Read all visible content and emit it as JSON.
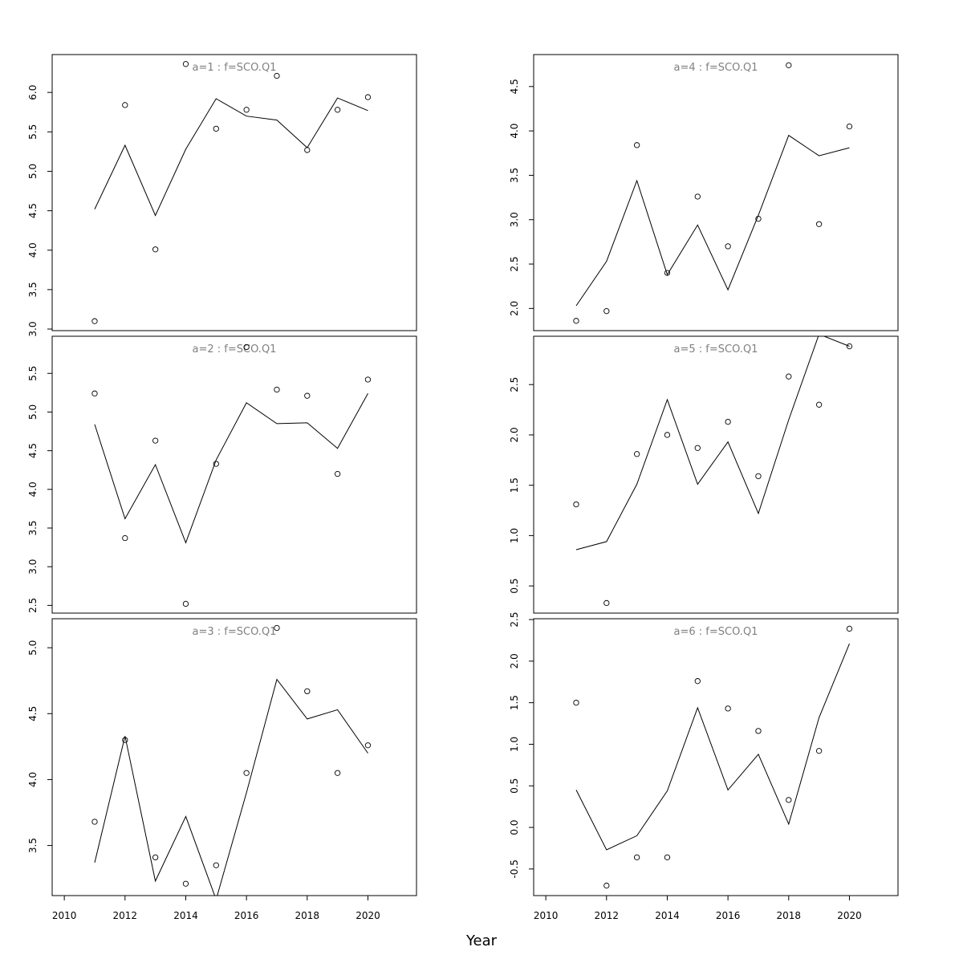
{
  "figure": {
    "xlabel": "Year"
  },
  "chart_data": [
    {
      "type": "line",
      "title": "a=1 : f=SCO.Q1",
      "x": [
        2011,
        2012,
        2013,
        2014,
        2015,
        2016,
        2017,
        2018,
        2019,
        2020
      ],
      "series": [
        {
          "values": [
            3.1,
            5.84,
            4.01,
            6.36,
            5.54,
            5.78,
            6.21,
            5.27,
            5.78,
            5.94
          ],
          "style": "points"
        },
        {
          "values": [
            4.52,
            5.33,
            4.44,
            5.28,
            5.92,
            5.7,
            5.65,
            5.3,
            5.93,
            5.77
          ],
          "style": "line"
        }
      ],
      "xlim": [
        2009.6,
        2021.6
      ],
      "ylim": [
        2.98,
        6.48
      ],
      "yticks": [
        "3.0",
        "3.5",
        "4.0",
        "4.5",
        "5.0",
        "5.5",
        "6.0"
      ],
      "xticks": []
    },
    {
      "type": "line",
      "title": "a=2 : f=SCO.Q1",
      "x": [
        2011,
        2012,
        2013,
        2014,
        2015,
        2016,
        2017,
        2018,
        2019,
        2020
      ],
      "series": [
        {
          "values": [
            5.24,
            3.37,
            4.63,
            2.52,
            4.33,
            5.84,
            5.29,
            5.21,
            4.2,
            5.42
          ],
          "style": "points"
        },
        {
          "values": [
            4.84,
            3.62,
            4.32,
            3.31,
            4.38,
            5.12,
            4.85,
            4.86,
            4.53,
            5.24
          ],
          "style": "line"
        }
      ],
      "xlim": [
        2009.6,
        2021.6
      ],
      "ylim": [
        2.4,
        5.98
      ],
      "yticks": [
        "2.5",
        "3.0",
        "3.5",
        "4.0",
        "4.5",
        "5.0",
        "5.5"
      ],
      "xticks": []
    },
    {
      "type": "line",
      "title": "a=3 : f=SCO.Q1",
      "x": [
        2011,
        2012,
        2013,
        2014,
        2015,
        2016,
        2017,
        2018,
        2019,
        2020
      ],
      "series": [
        {
          "values": [
            3.68,
            4.3,
            3.41,
            3.21,
            3.35,
            4.05,
            5.15,
            4.67,
            4.05,
            4.26
          ],
          "style": "points"
        },
        {
          "values": [
            3.37,
            4.33,
            3.23,
            3.72,
            3.09,
            3.9,
            4.76,
            4.46,
            4.53,
            4.2
          ],
          "style": "line"
        }
      ],
      "xlim": [
        2009.6,
        2021.6
      ],
      "ylim": [
        3.12,
        5.22
      ],
      "yticks": [
        "3.5",
        "4.0",
        "4.5",
        "5.0"
      ],
      "xticks": [
        "2010",
        "2012",
        "2014",
        "2016",
        "2018",
        "2020"
      ]
    },
    {
      "type": "line",
      "title": "a=4 : f=SCO.Q1",
      "x": [
        2011,
        2012,
        2013,
        2014,
        2015,
        2016,
        2017,
        2018,
        2019,
        2020
      ],
      "series": [
        {
          "values": [
            1.86,
            1.97,
            3.84,
            2.4,
            3.26,
            2.7,
            3.01,
            4.74,
            2.95,
            4.05
          ],
          "style": "points"
        },
        {
          "values": [
            2.03,
            2.53,
            3.44,
            2.38,
            2.94,
            2.21,
            3.05,
            3.95,
            3.72,
            3.81
          ],
          "style": "line"
        }
      ],
      "xlim": [
        2009.6,
        2021.6
      ],
      "ylim": [
        1.75,
        4.86
      ],
      "yticks": [
        "2.0",
        "2.5",
        "3.0",
        "3.5",
        "4.0",
        "4.5"
      ],
      "xticks": []
    },
    {
      "type": "line",
      "title": "a=5 : f=SCO.Q1",
      "x": [
        2011,
        2012,
        2013,
        2014,
        2015,
        2016,
        2017,
        2018,
        2019,
        2020
      ],
      "series": [
        {
          "values": [
            1.31,
            0.33,
            1.81,
            2.0,
            1.87,
            2.13,
            1.59,
            2.58,
            2.3,
            2.88
          ],
          "style": "points"
        },
        {
          "values": [
            0.86,
            0.94,
            1.51,
            2.35,
            1.51,
            1.93,
            1.22,
            2.15,
            3.0,
            2.88
          ],
          "style": "line"
        }
      ],
      "xlim": [
        2009.6,
        2021.6
      ],
      "ylim": [
        0.23,
        2.98
      ],
      "yticks": [
        "0.5",
        "1.0",
        "1.5",
        "2.0",
        "2.5"
      ],
      "xticks": []
    },
    {
      "type": "line",
      "title": "a=6 : f=SCO.Q1",
      "x": [
        2011,
        2012,
        2013,
        2014,
        2015,
        2016,
        2017,
        2018,
        2019,
        2020
      ],
      "series": [
        {
          "values": [
            1.5,
            -0.7,
            -0.36,
            -0.36,
            1.76,
            1.43,
            1.16,
            0.33,
            0.92,
            2.39
          ],
          "style": "points"
        },
        {
          "values": [
            0.45,
            -0.27,
            -0.1,
            0.44,
            1.44,
            0.45,
            0.88,
            0.04,
            1.32,
            2.21
          ],
          "style": "line"
        }
      ],
      "xlim": [
        2009.6,
        2021.6
      ],
      "ylim": [
        -0.82,
        2.51
      ],
      "yticks": [
        "-0.5",
        "0.0",
        "0.5",
        "1.0",
        "1.5",
        "2.0",
        "2.5"
      ],
      "xticks": [
        "2010",
        "2012",
        "2014",
        "2016",
        "2018",
        "2020"
      ]
    }
  ]
}
